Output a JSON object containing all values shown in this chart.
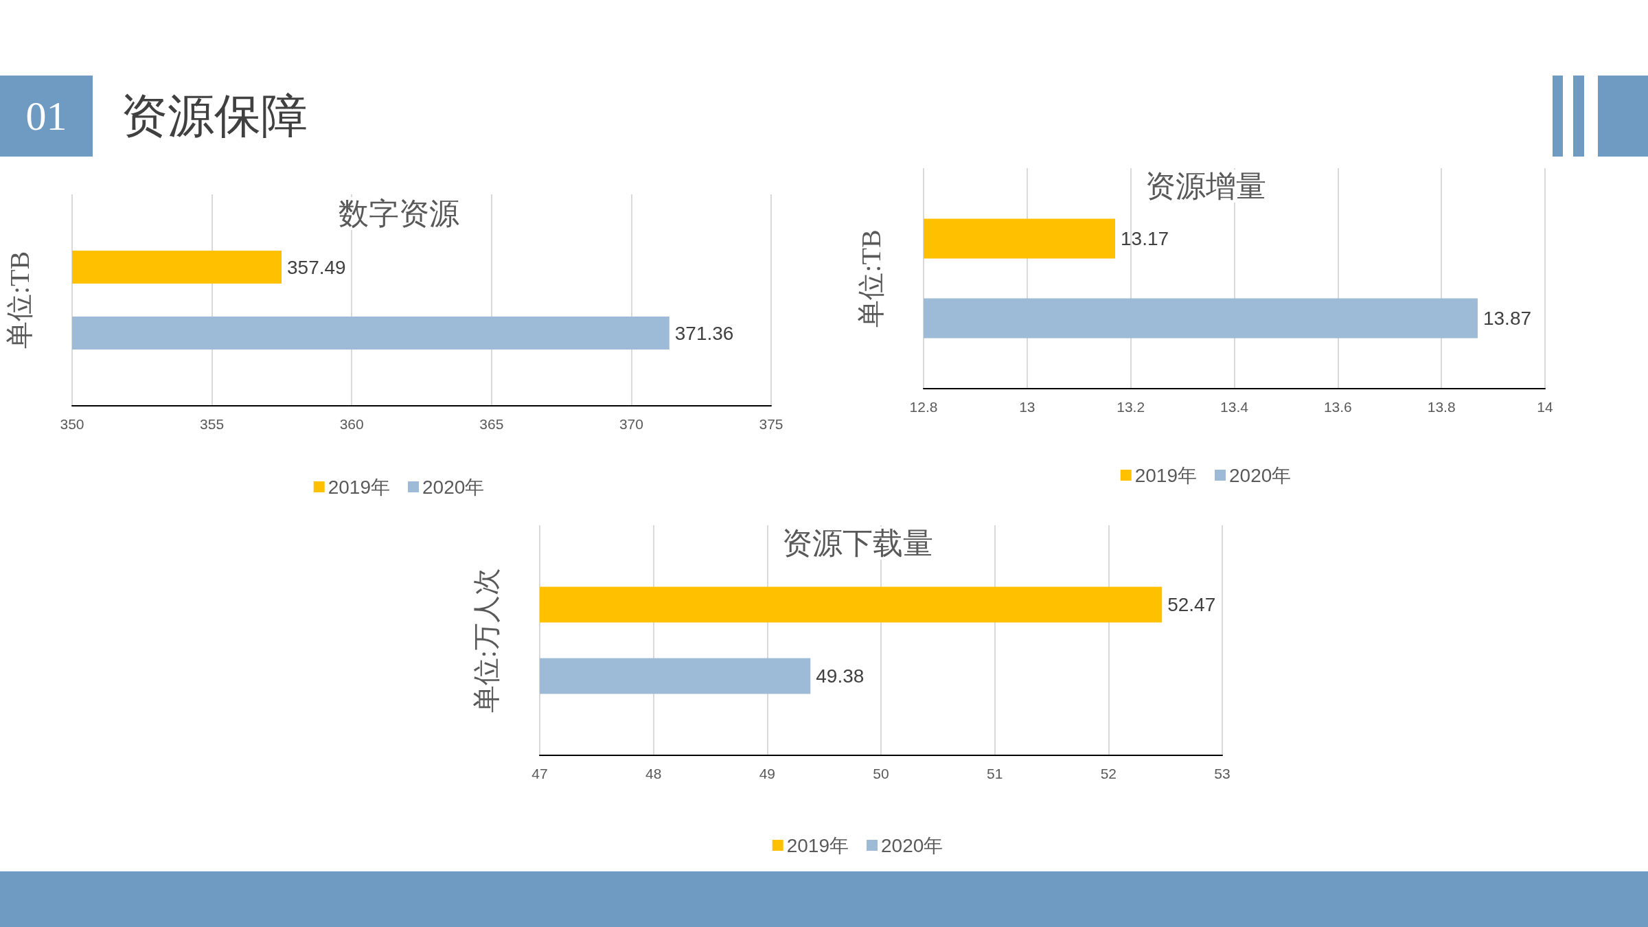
{
  "chart_data": [
    {
      "type": "other",
      "title": "资源保障",
      "annotations": [
        "01"
      ]
    },
    {
      "type": "bar",
      "orientation": "horizontal",
      "title": "数字资源",
      "ylabel": "单位:TB",
      "categories": [
        null
      ],
      "series": [
        {
          "name": "2019年",
          "color": "#ffc000",
          "values": [
            357.49
          ]
        },
        {
          "name": "2020年",
          "color": "#9dbad6",
          "values": [
            371.36
          ]
        }
      ],
      "xlim": [
        350,
        375
      ],
      "xticks": [
        350,
        355,
        360,
        365,
        370,
        375
      ],
      "grid": "x",
      "legend": "bottom",
      "data_labels": true
    },
    {
      "type": "bar",
      "orientation": "horizontal",
      "title": "资源增量",
      "ylabel": "单位:TB",
      "categories": [
        null
      ],
      "series": [
        {
          "name": "2019年",
          "color": "#ffc000",
          "values": [
            13.17
          ]
        },
        {
          "name": "2020年",
          "color": "#9dbad6",
          "values": [
            13.87
          ]
        }
      ],
      "xlim": [
        12.8,
        14
      ],
      "xticks": [
        12.8,
        13,
        13.2,
        13.4,
        13.6,
        13.8,
        14
      ],
      "grid": "x",
      "legend": "bottom",
      "data_labels": true
    },
    {
      "type": "bar",
      "orientation": "horizontal",
      "title": "资源下载量",
      "ylabel": "单位:万人次",
      "categories": [
        null
      ],
      "series": [
        {
          "name": "2019年",
          "color": "#ffc000",
          "values": [
            52.47
          ]
        },
        {
          "name": "2020年",
          "color": "#9dbad6",
          "values": [
            49.38
          ]
        }
      ],
      "xlim": [
        47,
        53
      ],
      "xticks": [
        47,
        48,
        49,
        50,
        51,
        52,
        53
      ],
      "grid": "x",
      "legend": "bottom",
      "data_labels": true
    }
  ]
}
